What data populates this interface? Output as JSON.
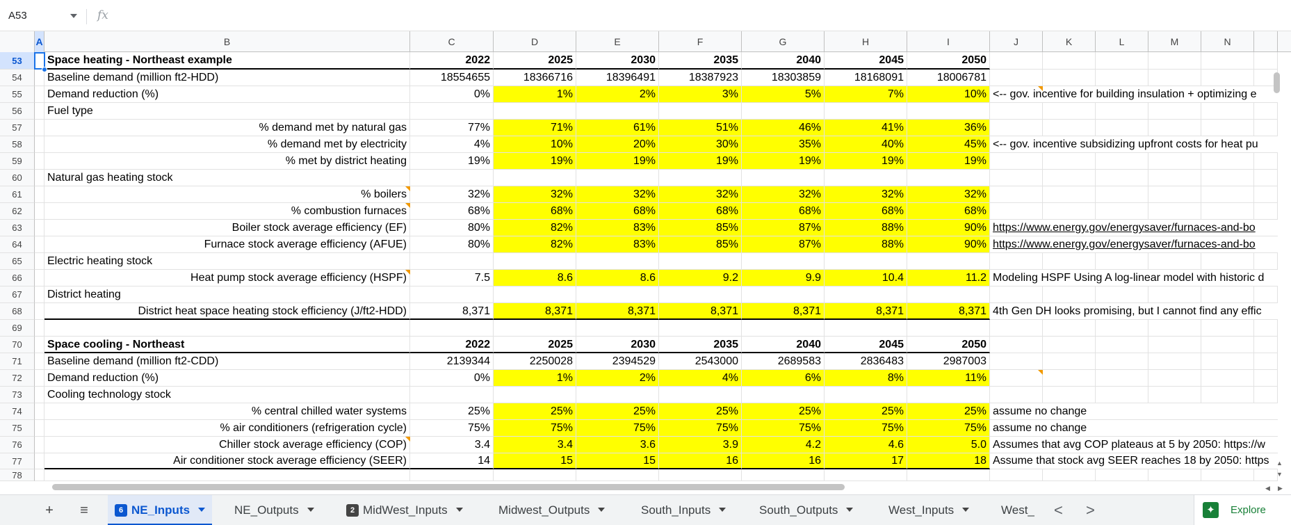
{
  "formula_bar": {
    "cell_ref": "A53",
    "fx_label": "fx",
    "formula": ""
  },
  "columns": [
    "A",
    "B",
    "C",
    "D",
    "E",
    "F",
    "G",
    "H",
    "I",
    "J",
    "K",
    "L",
    "M",
    "N"
  ],
  "rows": [
    {
      "num": "53",
      "b": "Space heating - Northeast example",
      "c": "2022",
      "d": "2025",
      "e": "2030",
      "f": "2035",
      "g": "2040",
      "h": "2045",
      "i": "2050",
      "j": ""
    },
    {
      "num": "54",
      "b": "Baseline demand (million ft2-HDD)",
      "c": "18554655",
      "d": "18366716",
      "e": "18396491",
      "f": "18387923",
      "g": "18303859",
      "h": "18168091",
      "i": "18006781",
      "j": ""
    },
    {
      "num": "55",
      "b": "Demand reduction (%)",
      "c": "0%",
      "d": "1%",
      "e": "2%",
      "f": "3%",
      "g": "5%",
      "h": "7%",
      "i": "10%",
      "j": "<-- gov. incentive for building insulation + optimizing e"
    },
    {
      "num": "56",
      "b": "Fuel type",
      "c": "",
      "d": "",
      "e": "",
      "f": "",
      "g": "",
      "h": "",
      "i": "",
      "j": ""
    },
    {
      "num": "57",
      "b": "% demand met by natural gas",
      "c": "77%",
      "d": "71%",
      "e": "61%",
      "f": "51%",
      "g": "46%",
      "h": "41%",
      "i": "36%",
      "j": ""
    },
    {
      "num": "58",
      "b": "% demand met by electricity",
      "c": "4%",
      "d": "10%",
      "e": "20%",
      "f": "30%",
      "g": "35%",
      "h": "40%",
      "i": "45%",
      "j": "<-- gov. incentive subsidizing upfront costs for heat pu"
    },
    {
      "num": "59",
      "b": "% met by district heating",
      "c": "19%",
      "d": "19%",
      "e": "19%",
      "f": "19%",
      "g": "19%",
      "h": "19%",
      "i": "19%",
      "j": ""
    },
    {
      "num": "60",
      "b": "Natural gas heating stock",
      "c": "",
      "d": "",
      "e": "",
      "f": "",
      "g": "",
      "h": "",
      "i": "",
      "j": ""
    },
    {
      "num": "61",
      "b": "% boilers",
      "c": "32%",
      "d": "32%",
      "e": "32%",
      "f": "32%",
      "g": "32%",
      "h": "32%",
      "i": "32%",
      "j": ""
    },
    {
      "num": "62",
      "b": "% combustion furnaces",
      "c": "68%",
      "d": "68%",
      "e": "68%",
      "f": "68%",
      "g": "68%",
      "h": "68%",
      "i": "68%",
      "j": ""
    },
    {
      "num": "63",
      "b": "Boiler stock average efficiency (EF)",
      "c": "80%",
      "d": "82%",
      "e": "83%",
      "f": "85%",
      "g": "87%",
      "h": "88%",
      "i": "90%",
      "j": "https://www.energy.gov/energysaver/furnaces-and-bo"
    },
    {
      "num": "64",
      "b": "Furnace stock average efficiency (AFUE)",
      "c": "80%",
      "d": "82%",
      "e": "83%",
      "f": "85%",
      "g": "87%",
      "h": "88%",
      "i": "90%",
      "j": "https://www.energy.gov/energysaver/furnaces-and-bo"
    },
    {
      "num": "65",
      "b": "Electric heating stock",
      "c": "",
      "d": "",
      "e": "",
      "f": "",
      "g": "",
      "h": "",
      "i": "",
      "j": ""
    },
    {
      "num": "66",
      "b": "Heat pump stock average efficiency (HSPF)",
      "c": "7.5",
      "d": "8.6",
      "e": "8.6",
      "f": "9.2",
      "g": "9.9",
      "h": "10.4",
      "i": "11.2",
      "j": "Modeling HSPF Using A log-linear model with historic d"
    },
    {
      "num": "67",
      "b": "District heating",
      "c": "",
      "d": "",
      "e": "",
      "f": "",
      "g": "",
      "h": "",
      "i": "",
      "j": ""
    },
    {
      "num": "68",
      "b": "District heat space heating stock efficiency (J/ft2-HDD)",
      "c": "8,371",
      "d": "8,371",
      "e": "8,371",
      "f": "8,371",
      "g": "8,371",
      "h": "8,371",
      "i": "8,371",
      "j": "4th Gen DH looks promising, but I cannot find any effic"
    },
    {
      "num": "69",
      "b": "",
      "c": "",
      "d": "",
      "e": "",
      "f": "",
      "g": "",
      "h": "",
      "i": "",
      "j": ""
    },
    {
      "num": "70",
      "b": "Space cooling - Northeast",
      "c": "2022",
      "d": "2025",
      "e": "2030",
      "f": "2035",
      "g": "2040",
      "h": "2045",
      "i": "2050",
      "j": ""
    },
    {
      "num": "71",
      "b": "Baseline demand (million ft2-CDD)",
      "c": "2139344",
      "d": "2250028",
      "e": "2394529",
      "f": "2543000",
      "g": "2689583",
      "h": "2836483",
      "i": "2987003",
      "j": ""
    },
    {
      "num": "72",
      "b": "Demand reduction (%)",
      "c": "0%",
      "d": "1%",
      "e": "2%",
      "f": "4%",
      "g": "6%",
      "h": "8%",
      "i": "11%",
      "j": ""
    },
    {
      "num": "73",
      "b": "Cooling technology stock",
      "c": "",
      "d": "",
      "e": "",
      "f": "",
      "g": "",
      "h": "",
      "i": "",
      "j": ""
    },
    {
      "num": "74",
      "b": "% central chilled water systems",
      "c": "25%",
      "d": "25%",
      "e": "25%",
      "f": "25%",
      "g": "25%",
      "h": "25%",
      "i": "25%",
      "j": "assume no change"
    },
    {
      "num": "75",
      "b": "% air conditioners (refrigeration cycle)",
      "c": "75%",
      "d": "75%",
      "e": "75%",
      "f": "75%",
      "g": "75%",
      "h": "75%",
      "i": "75%",
      "j": "assume no change"
    },
    {
      "num": "76",
      "b": "Chiller stock average efficiency (COP)",
      "c": "3.4",
      "d": "3.4",
      "e": "3.6",
      "f": "3.9",
      "g": "4.2",
      "h": "4.6",
      "i": "5.0",
      "j": "Assumes that avg COP plateaus at 5 by 2050: https://w"
    },
    {
      "num": "77",
      "b": "Air conditioner stock average efficiency (SEER)",
      "c": "14",
      "d": "15",
      "e": "15",
      "f": "16",
      "g": "16",
      "h": "17",
      "i": "18",
      "j": "Assume that stock avg SEER reaches 18 by 2050: https"
    },
    {
      "num": "78",
      "b": "",
      "c": "",
      "d": "",
      "e": "",
      "f": "",
      "g": "",
      "h": "",
      "i": "",
      "j": ""
    }
  ],
  "tabs": {
    "add_label": "+",
    "menu_label": "≡",
    "sheets": [
      {
        "badge": "6",
        "label": "NE_Inputs"
      },
      {
        "badge": "",
        "label": "NE_Outputs"
      },
      {
        "badge": "2",
        "label": "MidWest_Inputs"
      },
      {
        "badge": "",
        "label": "Midwest_Outputs"
      },
      {
        "badge": "",
        "label": "South_Inputs"
      },
      {
        "badge": "",
        "label": "South_Outputs"
      },
      {
        "badge": "",
        "label": "West_Inputs"
      },
      {
        "badge": "",
        "label": "West_"
      }
    ],
    "prev_label": "<",
    "next_label": ">",
    "explore_label": "Explore"
  },
  "colors": {
    "highlight": "#ffff00",
    "selection": "#1a73e8",
    "note": "#f29900",
    "explore": "#188038"
  }
}
